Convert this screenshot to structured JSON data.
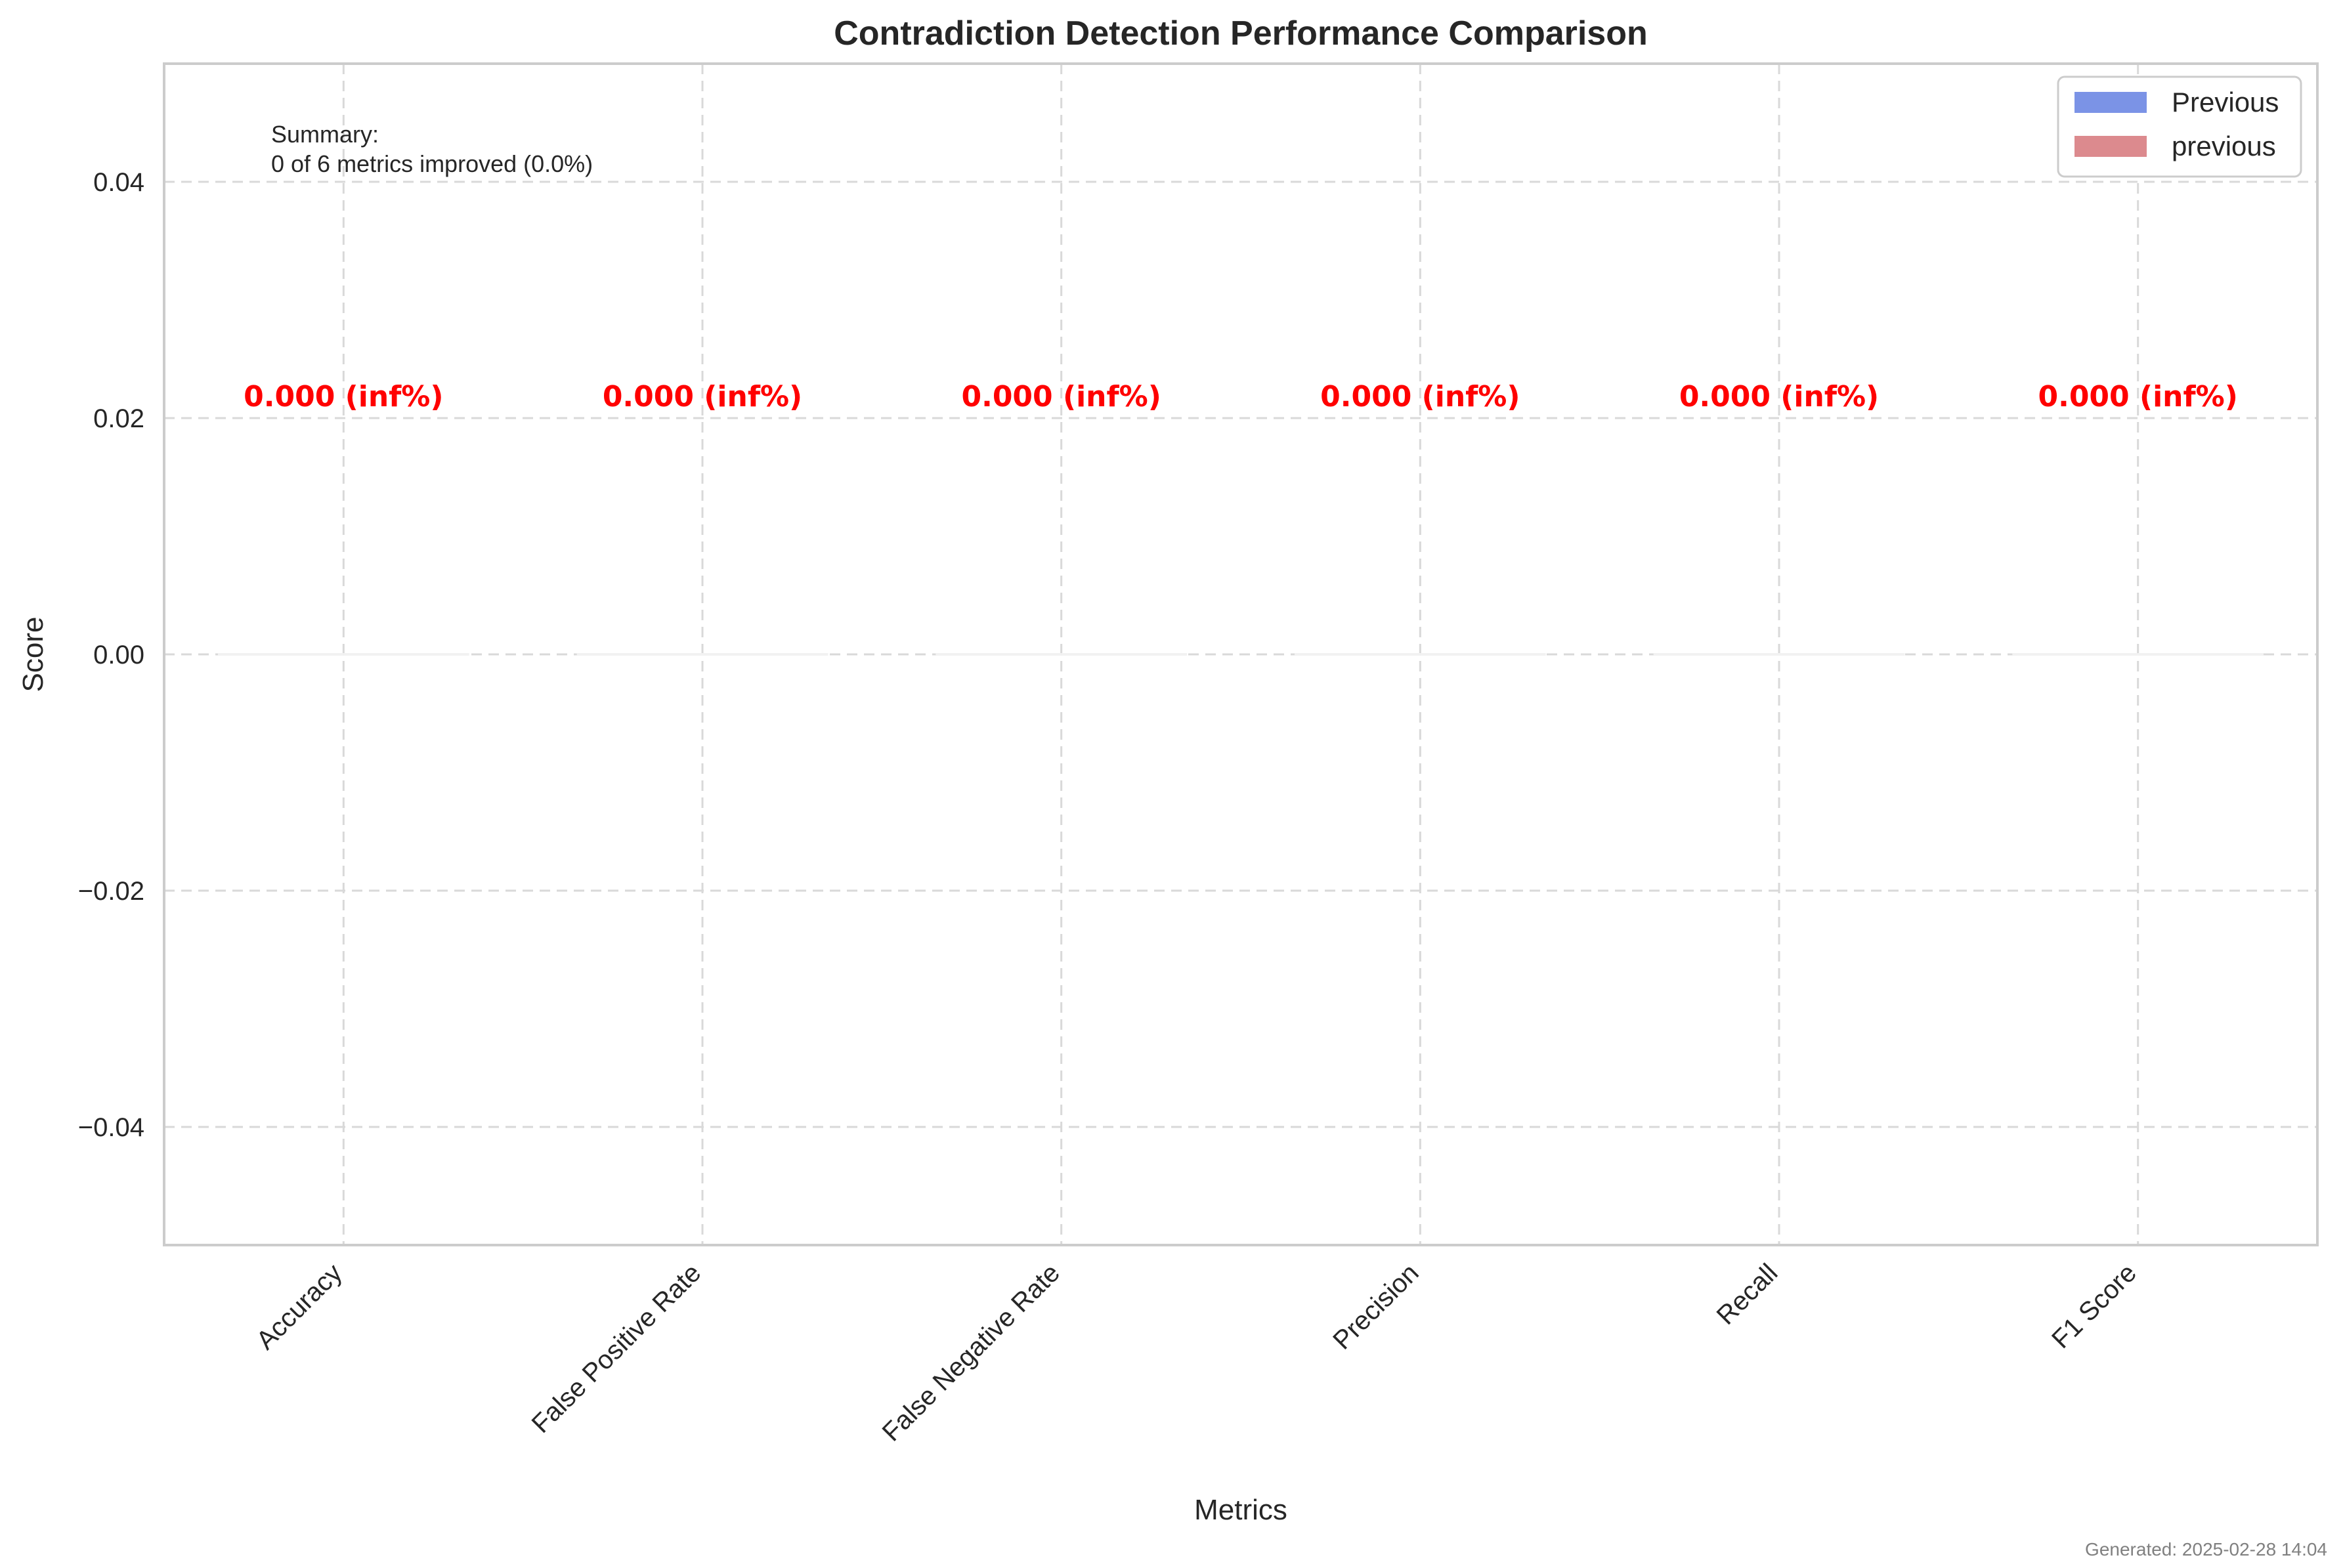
{
  "chart_data": {
    "type": "bar",
    "title": "Contradiction Detection Performance Comparison",
    "xlabel": "Metrics",
    "ylabel": "Score",
    "categories": [
      "Accuracy",
      "False Positive Rate",
      "False Negative Rate",
      "Precision",
      "Recall",
      "F1 Score"
    ],
    "series": [
      {
        "name": "Previous",
        "values": [
          0,
          0,
          0,
          0,
          0,
          0
        ],
        "color": "#7b93e6"
      },
      {
        "name": "previous",
        "values": [
          0,
          0,
          0,
          0,
          0,
          0
        ],
        "color": "#dc8a8e"
      }
    ],
    "data_labels": [
      "0.000 (inf%)",
      "0.000 (inf%)",
      "0.000 (inf%)",
      "0.000 (inf%)",
      "0.000 (inf%)",
      "0.000 (inf%)"
    ],
    "data_label_value": 0.021,
    "data_label_color": "#ff0000",
    "ylim": [
      -0.05,
      0.05
    ],
    "yticks": [
      -0.04,
      -0.02,
      0.0,
      0.02,
      0.04
    ],
    "ytick_labels": [
      "−0.04",
      "−0.02",
      "0.00",
      "0.02",
      "0.04"
    ],
    "grid": true,
    "legend_position": "top-right",
    "summary_lines": [
      "Summary:",
      "0 of 6 metrics improved (0.0%)"
    ],
    "footer": "Generated: 2025-02-28 14:04"
  }
}
